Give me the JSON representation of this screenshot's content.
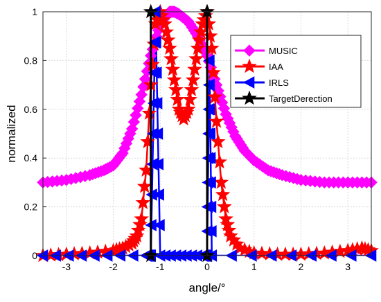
{
  "chart_data": {
    "type": "line",
    "title": "",
    "xlabel": "angle/°",
    "ylabel": "normalized",
    "xlim": [
      -3.5,
      3.5
    ],
    "ylim": [
      0,
      1
    ],
    "x_ticks": [
      -3,
      -2,
      -1,
      0,
      1,
      2,
      3
    ],
    "y_ticks": [
      0,
      0.2,
      0.4,
      0.6,
      0.8,
      1
    ],
    "x_tick_labels": [
      "-3",
      "-2",
      "-1",
      "0",
      "1",
      "2",
      "3"
    ],
    "y_tick_labels": [
      "0",
      "0.2",
      "0.4",
      "0.6",
      "0.8",
      "1"
    ],
    "grid": true,
    "legend_position": "top-right",
    "series": [
      {
        "name": "MUSIC",
        "color": "#ff00ff",
        "marker": "diamond",
        "x": [
          -3.5,
          -3.0,
          -2.5,
          -2.2,
          -2.0,
          -1.8,
          -1.6,
          -1.4,
          -1.2,
          -1.0,
          -0.8,
          -0.7,
          -0.6,
          -0.4,
          -0.2,
          0.0,
          0.2,
          0.4,
          0.6,
          0.8,
          1.0,
          1.3,
          1.6,
          2.0,
          2.5,
          3.0,
          3.5
        ],
        "y": [
          0.3,
          0.31,
          0.33,
          0.35,
          0.37,
          0.42,
          0.52,
          0.66,
          0.82,
          0.95,
          1.0,
          1.0,
          0.99,
          0.96,
          0.9,
          0.82,
          0.7,
          0.58,
          0.49,
          0.43,
          0.39,
          0.35,
          0.33,
          0.31,
          0.3,
          0.3,
          0.3
        ]
      },
      {
        "name": "IAA",
        "color": "#ff0000",
        "marker": "star",
        "x": [
          -3.5,
          -3.0,
          -2.5,
          -2.0,
          -1.8,
          -1.6,
          -1.5,
          -1.4,
          -1.3,
          -1.2,
          -1.1,
          -1.0,
          -0.9,
          -0.8,
          -0.7,
          -0.6,
          -0.5,
          -0.4,
          -0.3,
          -0.2,
          -0.1,
          0.0,
          0.1,
          0.2,
          0.3,
          0.4,
          0.5,
          0.7,
          1.0,
          1.5,
          2.0,
          2.5,
          3.0,
          3.3,
          3.5
        ],
        "y": [
          0.0,
          0.005,
          0.01,
          0.02,
          0.03,
          0.05,
          0.08,
          0.15,
          0.35,
          0.7,
          0.95,
          1.0,
          0.95,
          0.85,
          0.72,
          0.6,
          0.56,
          0.6,
          0.72,
          0.85,
          0.95,
          1.0,
          0.85,
          0.55,
          0.3,
          0.15,
          0.08,
          0.03,
          0.01,
          0.005,
          0.005,
          0.01,
          0.02,
          0.03,
          0.02
        ]
      },
      {
        "name": "IRLS",
        "color": "#0000ff",
        "marker": "triangle-left",
        "x": [
          -3.5,
          -1.3,
          -1.2,
          -1.1,
          -1.0,
          -0.1,
          0.0,
          0.05,
          0.1,
          3.5
        ],
        "y": [
          0.0,
          0.0,
          0.0,
          1.0,
          0.0,
          0.0,
          0.0,
          0.8,
          0.0,
          0.0
        ]
      },
      {
        "name": "TargetDerection",
        "color": "#000000",
        "marker": "star",
        "stems": [
          {
            "x": -1.2,
            "y": [
              0,
              1
            ]
          },
          {
            "x": 0.0,
            "y": [
              0,
              1
            ]
          }
        ]
      }
    ]
  }
}
